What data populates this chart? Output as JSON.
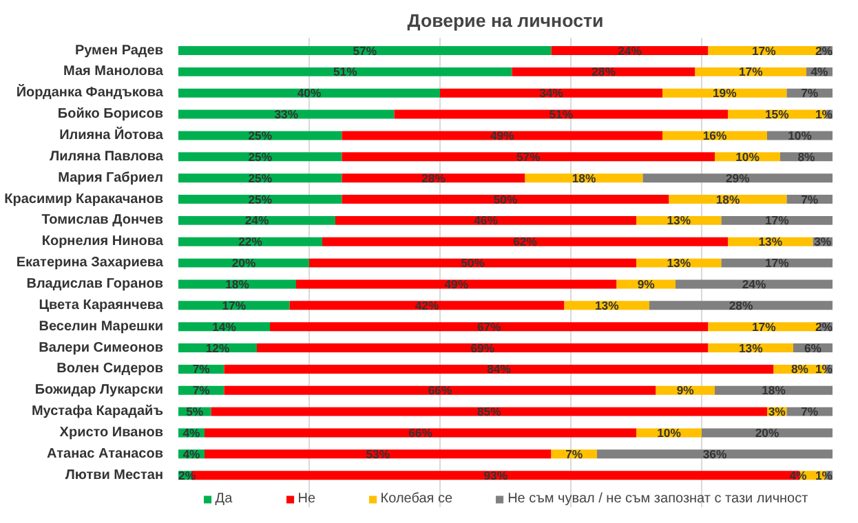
{
  "chart_data": {
    "type": "bar",
    "orientation": "horizontal",
    "stacked": true,
    "title": "Доверие на личности",
    "categories": [
      "Румен Радев",
      "Мая Манолова",
      "Йорданка Фандъкова",
      "Бойко Борисов",
      "Илияна Йотова",
      "Лиляна Павлова",
      "Мария Габриел",
      "Красимир Каракачанов",
      "Томислав Дончев",
      "Корнелия Нинова",
      "Екатерина Захариева",
      "Владислав Горанов",
      "Цвета Караянчева",
      "Веселин Марешки",
      "Валери Симеонов",
      "Волен Сидеров",
      "Божидар Лукарски",
      "Мустафа Карадайъ",
      "Христо Иванов",
      "Атанас Атанасов",
      "Лютви Местан"
    ],
    "series": [
      {
        "name": "Да",
        "color": "#00b050",
        "values": [
          57,
          51,
          40,
          33,
          25,
          25,
          25,
          25,
          24,
          22,
          20,
          18,
          17,
          14,
          12,
          7,
          7,
          5,
          4,
          4,
          2
        ],
        "value_labels": [
          "57%",
          "51%",
          "40%",
          "33%",
          "25%",
          "25%",
          "25%",
          "25%",
          "24%",
          "22%",
          "20%",
          "18%",
          "17%",
          "14%",
          "12%",
          "7%",
          "7%",
          "5%",
          "4%",
          "4%",
          "2%"
        ]
      },
      {
        "name": "Не",
        "color": "#ff0000",
        "values": [
          24,
          28,
          34,
          51,
          49,
          57,
          28,
          50,
          46,
          62,
          50,
          49,
          42,
          67,
          69,
          84,
          66,
          85,
          66,
          53,
          93
        ],
        "value_labels": [
          "24%",
          "28%",
          "34%",
          "51%",
          "49%",
          "57%",
          "28%",
          "50%",
          "46%",
          "62%",
          "50%",
          "49%",
          "42%",
          "67%",
          "69%",
          "84%",
          "66%",
          "85%",
          "66%",
          "53%",
          "93%"
        ]
      },
      {
        "name": "Колебая се",
        "color": "#ffc000",
        "values": [
          17,
          17,
          19,
          15,
          16,
          10,
          18,
          18,
          13,
          13,
          13,
          9,
          13,
          17,
          13,
          8,
          9,
          3,
          10,
          7,
          4
        ],
        "value_labels": [
          "17%",
          "17%",
          "19%",
          "15%",
          "16%",
          "10%",
          "18%",
          "18%",
          "13%",
          "13%",
          "13%",
          "9%",
          "13%",
          "17%",
          "13%",
          "8%",
          "9%",
          "3%",
          "10%",
          "7%",
          "4%"
        ]
      },
      {
        "name": "Не съм чувал / не съм запознат с тази личност",
        "color": "#808080",
        "values": [
          2,
          4,
          7,
          1,
          10,
          8,
          29,
          7,
          17,
          3,
          17,
          24,
          28,
          2,
          6,
          1,
          18,
          7,
          20,
          36,
          1
        ],
        "value_labels": [
          "2%",
          "4%",
          "7%",
          "1%",
          "10%",
          "8%",
          "29%",
          "7%",
          "17%",
          "3%",
          "17%",
          "24%",
          "28%",
          "2%",
          "6%",
          "1%",
          "18%",
          "7%",
          "20%",
          "36%",
          "1%"
        ]
      }
    ],
    "xlim": [
      0,
      100
    ],
    "xticks": [
      {
        "value": 20,
        "label": null
      },
      {
        "value": 40,
        "label": null
      },
      {
        "value": 60,
        "label": null
      },
      {
        "value": 80,
        "label": null
      }
    ],
    "grid": "x",
    "tick_labels": "y",
    "legend": "bottom"
  }
}
